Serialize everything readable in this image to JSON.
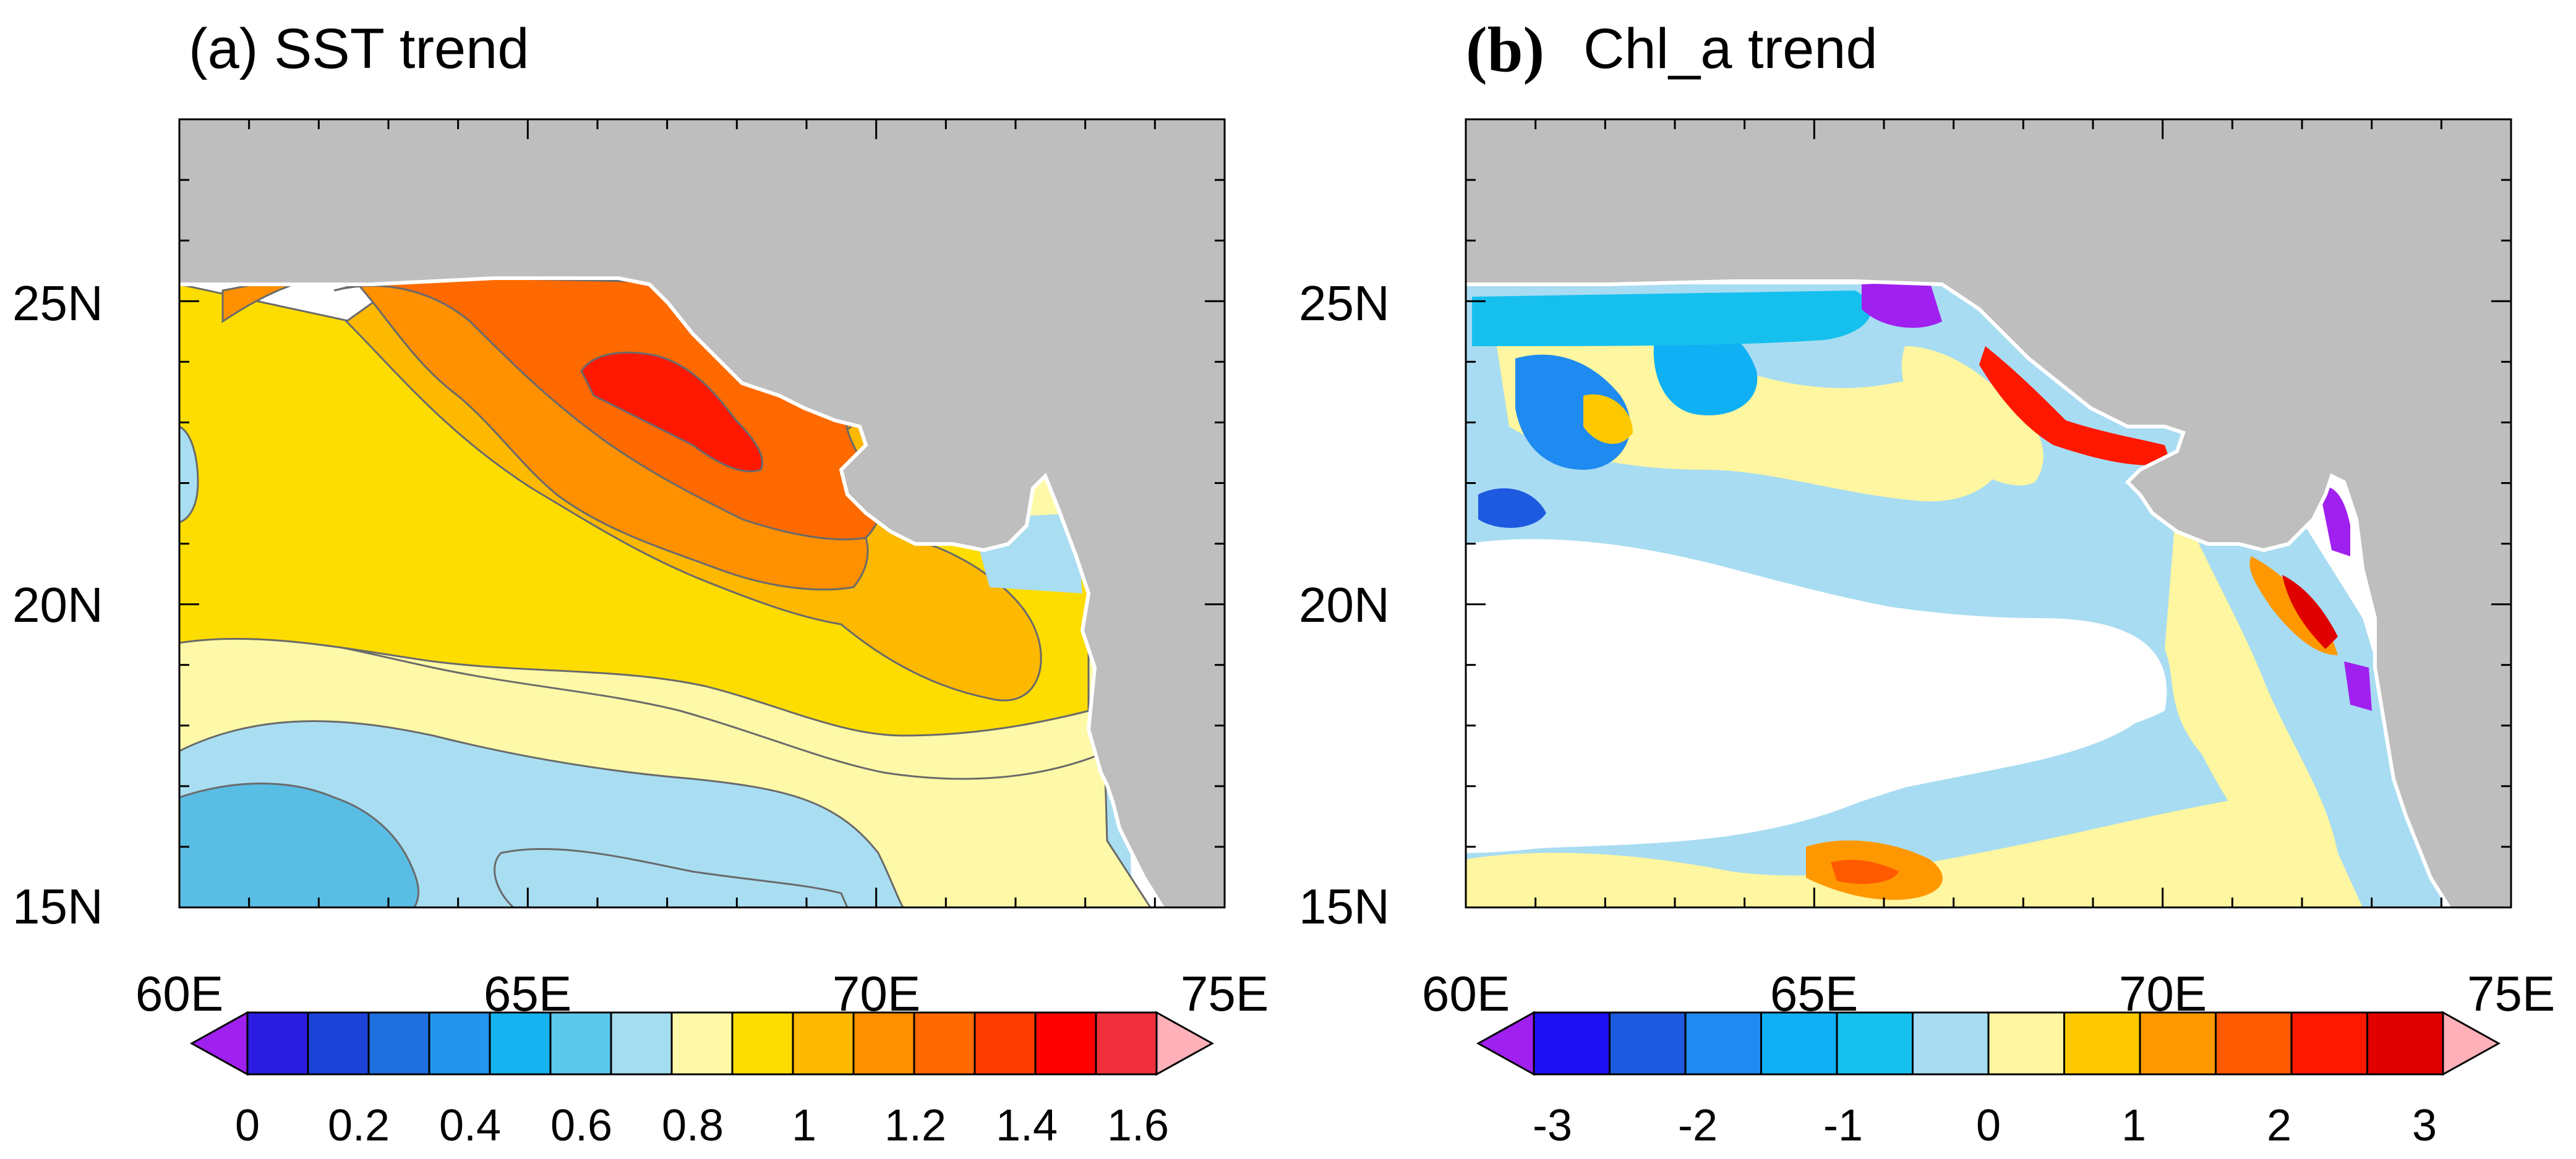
{
  "panel_a": {
    "title": "(a) SST trend",
    "x_ticks": [
      "60E",
      "65E",
      "70E",
      "75E"
    ],
    "y_ticks": [
      "25N",
      "20N",
      "15N"
    ],
    "colorbar": {
      "colors": [
        "#a020f0",
        "#2b1de0",
        "#1c43d8",
        "#1f6fe0",
        "#2395ee",
        "#17b3f0",
        "#5cc9ec",
        "#a5ddf0",
        "#fef9a8",
        "#fddd00",
        "#fdb800",
        "#ff9000",
        "#ff6a00",
        "#ff3c00",
        "#ff0000",
        "#f0303c",
        "#ffb0b8"
      ],
      "labels": [
        "0",
        "0.2",
        "0.4",
        "0.6",
        "0.8",
        "1",
        "1.2",
        "1.4",
        "1.6"
      ]
    }
  },
  "panel_b": {
    "title_letter": "(b)",
    "title_text": "Chl_a trend",
    "x_ticks": [
      "60E",
      "65E",
      "70E",
      "75E"
    ],
    "y_ticks": [
      "25N",
      "20N",
      "15N"
    ],
    "colorbar": {
      "colors": [
        "#a020f0",
        "#1f0ff5",
        "#1e5ae0",
        "#1f8af0",
        "#10b0f4",
        "#16c0ee",
        "#a8dcf2",
        "#fef6a0",
        "#fdc800",
        "#ff9800",
        "#ff5a00",
        "#ff1800",
        "#e00000",
        "#ffb0b8"
      ],
      "labels": [
        "-3",
        "-2",
        "-1",
        "0",
        "1",
        "2",
        "3"
      ]
    }
  },
  "colors": {
    "land": "#bebebe",
    "frame": "#000000"
  }
}
